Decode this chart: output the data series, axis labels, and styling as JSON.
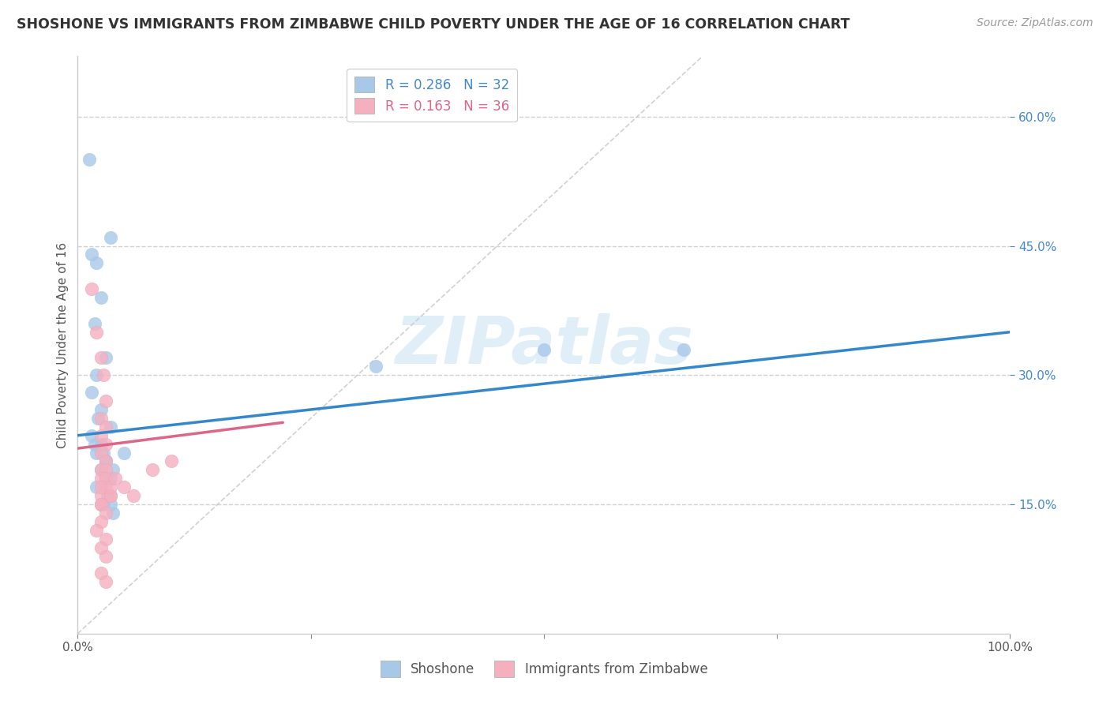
{
  "title": "SHOSHONE VS IMMIGRANTS FROM ZIMBABWE CHILD POVERTY UNDER THE AGE OF 16 CORRELATION CHART",
  "source": "Source: ZipAtlas.com",
  "ylabel": "Child Poverty Under the Age of 16",
  "xlim": [
    0,
    100
  ],
  "ylim": [
    0,
    67
  ],
  "shoshone_R": 0.286,
  "shoshone_N": 32,
  "zimbabwe_R": 0.163,
  "zimbabwe_N": 36,
  "shoshone_color": "#a8c8e8",
  "zimbabwe_color": "#f5b0c0",
  "shoshone_line_color": "#3388cc",
  "zimbabwe_line_color": "#dd6688",
  "diagonal_color": "#cccccc",
  "watermark": "ZIPatlas",
  "shoshone_line_x": [
    0,
    100
  ],
  "shoshone_line_y": [
    23.0,
    35.0
  ],
  "zimbabwe_line_x": [
    0,
    22
  ],
  "zimbabwe_line_y": [
    21.5,
    24.5
  ],
  "ytick_positions": [
    15,
    30,
    45,
    60
  ],
  "ytick_labels": [
    "15.0%",
    "30.0%",
    "45.0%",
    "60.0%"
  ],
  "xtick_positions": [
    0,
    25,
    50,
    75,
    100
  ],
  "xtick_labels": [
    "0.0%",
    "",
    "",
    "",
    "100.0%"
  ],
  "shoshone_points_x": [
    1.2,
    1.5,
    2.0,
    2.5,
    1.8,
    3.0,
    3.5,
    2.0,
    1.5,
    2.5,
    2.2,
    3.5,
    1.5,
    1.8,
    2.0,
    2.5,
    2.8,
    3.0,
    2.5,
    3.0,
    2.0,
    3.2,
    2.8,
    3.5,
    3.8,
    3.0,
    3.5,
    3.8,
    5.0,
    32,
    50,
    65
  ],
  "shoshone_points_y": [
    55,
    44,
    43,
    39,
    36,
    32,
    46,
    30,
    28,
    26,
    25,
    24,
    23,
    22,
    21,
    22,
    21,
    20,
    19,
    18,
    17,
    16,
    15,
    15,
    14,
    20,
    18,
    19,
    21,
    31,
    33,
    33
  ],
  "zimbabwe_points_x": [
    1.5,
    2.0,
    2.5,
    2.8,
    3.0,
    2.5,
    3.0,
    2.5,
    3.0,
    2.5,
    3.0,
    2.5,
    3.0,
    2.5,
    3.0,
    2.5,
    3.5,
    2.5,
    3.0,
    2.5,
    3.5,
    2.5,
    3.0,
    2.5,
    2.0,
    3.0,
    2.5,
    3.0,
    2.5,
    3.0,
    3.5,
    4.0,
    5.0,
    6.0,
    8.0,
    10.0
  ],
  "zimbabwe_points_y": [
    40,
    35,
    32,
    30,
    27,
    25,
    24,
    23,
    22,
    21,
    20,
    19,
    19,
    18,
    17,
    16,
    16,
    15,
    18,
    17,
    16,
    15,
    14,
    13,
    12,
    11,
    10,
    9,
    7,
    6,
    17,
    18,
    17,
    16,
    19,
    20
  ]
}
